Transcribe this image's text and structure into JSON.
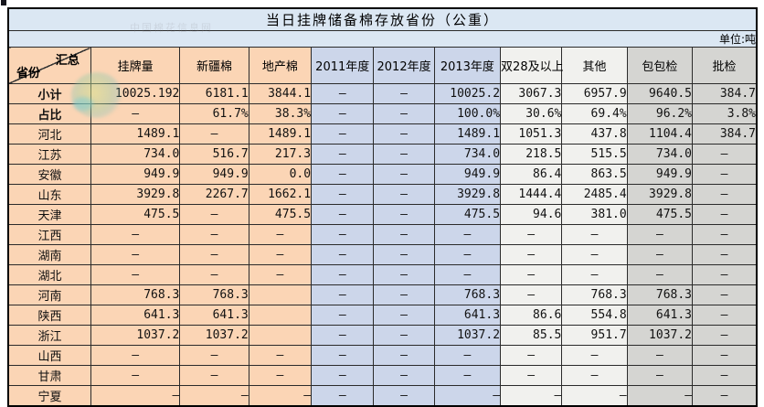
{
  "table": {
    "title": "当日挂牌储备棉存放省份（公重）",
    "unit_label": "单位:吨",
    "corner": {
      "top_right": "汇总",
      "bottom_left": "省份"
    },
    "columns": [
      "挂牌量",
      "新疆棉",
      "地产棉",
      "2011年度",
      "2012年度",
      "2013年度",
      "双28及以上",
      "其他",
      "包包检",
      "批检"
    ],
    "rows": [
      {
        "label": "小计",
        "bold": true,
        "cells": [
          "10025.192",
          "6181.1",
          "3844.1",
          "—",
          "—",
          "10025.2",
          "3067.3",
          "6957.9",
          "9640.5",
          "384.7"
        ]
      },
      {
        "label": "占比",
        "bold": true,
        "thick_bottom": true,
        "cells": [
          "—",
          "61.7%",
          "38.3%",
          "—",
          "—",
          "100.0%",
          "30.6%",
          "69.4%",
          "96.2%",
          "3.8%"
        ]
      },
      {
        "label": "河北",
        "cells": [
          "1489.1",
          "—",
          "1489.1",
          "—",
          "—",
          "1489.1",
          "1051.3",
          "437.8",
          "1104.4",
          "384.7"
        ]
      },
      {
        "label": "江苏",
        "cells": [
          "734.0",
          "516.7",
          "217.3",
          "—",
          "—",
          "734.0",
          "218.5",
          "515.5",
          "734.0",
          "—"
        ]
      },
      {
        "label": "安徽",
        "cells": [
          "949.9",
          "949.9",
          "0.0",
          "—",
          "—",
          "949.9",
          "86.4",
          "863.5",
          "949.9",
          "—"
        ]
      },
      {
        "label": "山东",
        "cells": [
          "3929.8",
          "2267.7",
          "1662.1",
          "—",
          "—",
          "3929.8",
          "1444.4",
          "2485.4",
          "3929.8",
          "—"
        ]
      },
      {
        "label": "天津",
        "cells": [
          "475.5",
          "—",
          "475.5",
          "—",
          "—",
          "475.5",
          "94.6",
          "381.0",
          "475.5",
          "—"
        ]
      },
      {
        "label": "江西",
        "cells": [
          "—",
          "—",
          "—",
          "—",
          "—",
          "—",
          "—",
          "—",
          "—",
          "—"
        ]
      },
      {
        "label": "湖南",
        "cells": [
          "—",
          "—",
          "—",
          "—",
          "—",
          "—",
          "—",
          "—",
          "—",
          "—"
        ]
      },
      {
        "label": "湖北",
        "cells": [
          "—",
          "—",
          "—",
          "—",
          "—",
          "—",
          "—",
          "—",
          "—",
          "—"
        ]
      },
      {
        "label": "河南",
        "cells": [
          "768.3",
          "768.3",
          "",
          "—",
          "—",
          "768.3",
          "—",
          "768.3",
          "768.3",
          "—"
        ]
      },
      {
        "label": "陕西",
        "cells": [
          "641.3",
          "641.3",
          "",
          "—",
          "—",
          "641.3",
          "86.6",
          "554.8",
          "641.3",
          "—"
        ]
      },
      {
        "label": "浙江",
        "cells": [
          "1037.2",
          "1037.2",
          "",
          "—",
          "—",
          "1037.2",
          "85.5",
          "951.7",
          "1037.2",
          "—"
        ]
      },
      {
        "label": "山西",
        "cells": [
          "—",
          "—",
          "—",
          "—",
          "—",
          "—",
          "—",
          "—",
          "—",
          "—"
        ]
      },
      {
        "label": "甘肃",
        "cells": [
          "—",
          "—",
          "—",
          "—",
          "—",
          "—",
          "—",
          "—",
          "—",
          "—"
        ]
      },
      {
        "label": "宁夏",
        "right_dash_cols": [
          0,
          1,
          2,
          5,
          6,
          7,
          8
        ],
        "cells": [
          "—",
          "—",
          "—",
          "—",
          "—",
          "—",
          "—",
          "—",
          "—",
          "—"
        ]
      }
    ],
    "colors": {
      "band_blue": "#dbe7f3",
      "peach": "#fbd5b5",
      "year_blue": "#ccd6ea",
      "light_gray": "#f1f1ee",
      "dark_gray": "#d5d5d2",
      "grid_border": "#2b2b2b",
      "title_text": "#000000"
    },
    "watermark_text": "中国棉花信息网"
  }
}
